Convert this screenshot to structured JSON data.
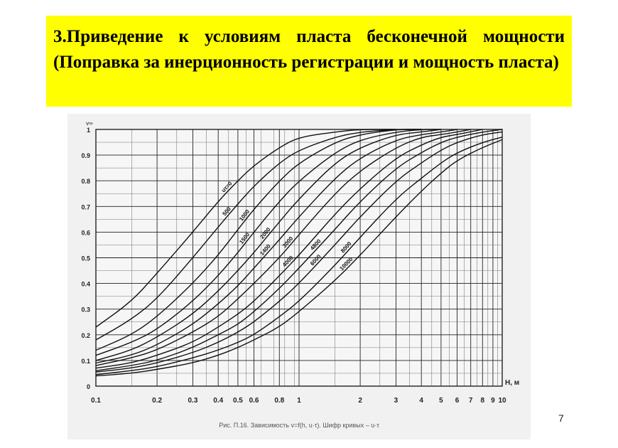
{
  "slide": {
    "title": "3.Приведение к условиям пласта бесконечной мощности (Поправка за инерционность регистрации и мощность пласта)",
    "page_number": "7",
    "title_bg": "#ffff00"
  },
  "chart_data": {
    "type": "line",
    "ylabel": "v∞",
    "xlabel": "H, м",
    "caption": "Рис. П.16. Зависимость v=f(h, u·τ). Шифр кривых – u·τ",
    "x_scale": "log",
    "xlim": [
      0.1,
      10
    ],
    "ylim": [
      0,
      1
    ],
    "grid": true,
    "x_ticks": [
      0.1,
      0.2,
      0.3,
      0.4,
      0.5,
      0.6,
      0.8,
      1,
      2,
      3,
      4,
      5,
      6,
      7,
      8,
      9,
      10
    ],
    "x_tick_labels": [
      "0.1",
      "0.2",
      "0.3",
      "0.4",
      "0.5",
      "0.6",
      "0.8",
      "1",
      "2",
      "3",
      "4",
      "5",
      "6",
      "7",
      "8",
      "9",
      "10"
    ],
    "y_ticks": [
      0,
      0.1,
      0.2,
      0.3,
      0.4,
      0.5,
      0.6,
      0.7,
      0.8,
      0.9,
      1
    ],
    "y_tick_labels": [
      "0",
      "0.1",
      "0.2",
      "0.3",
      "0.4",
      "0.5",
      "0.6",
      "0.7",
      "0.8",
      "0.9",
      "1"
    ],
    "series": [
      {
        "name": "uτ=0",
        "x": [
          0.1,
          0.15,
          0.2,
          0.3,
          0.4,
          0.5,
          0.6,
          0.8,
          1,
          1.5,
          2,
          3
        ],
        "y": [
          0.23,
          0.33,
          0.44,
          0.6,
          0.72,
          0.8,
          0.86,
          0.93,
          0.97,
          0.99,
          1,
          1
        ]
      },
      {
        "name": "500",
        "x": [
          0.1,
          0.15,
          0.2,
          0.3,
          0.4,
          0.5,
          0.6,
          0.8,
          1,
          1.5,
          2,
          3,
          4
        ],
        "y": [
          0.18,
          0.26,
          0.34,
          0.5,
          0.62,
          0.71,
          0.78,
          0.87,
          0.92,
          0.97,
          0.99,
          1,
          1
        ]
      },
      {
        "name": "1000",
        "x": [
          0.1,
          0.15,
          0.2,
          0.3,
          0.4,
          0.5,
          0.6,
          0.8,
          1,
          1.5,
          2,
          3,
          4
        ],
        "y": [
          0.14,
          0.2,
          0.27,
          0.4,
          0.51,
          0.61,
          0.69,
          0.8,
          0.87,
          0.95,
          0.98,
          1,
          1
        ]
      },
      {
        "name": "1500",
        "x": [
          0.1,
          0.15,
          0.2,
          0.3,
          0.4,
          0.5,
          0.6,
          0.8,
          1,
          1.5,
          2,
          3,
          4,
          5
        ],
        "y": [
          0.12,
          0.17,
          0.22,
          0.33,
          0.43,
          0.52,
          0.6,
          0.72,
          0.8,
          0.91,
          0.96,
          0.99,
          1,
          1
        ]
      },
      {
        "name": "2000",
        "x": [
          0.1,
          0.15,
          0.2,
          0.3,
          0.4,
          0.5,
          0.6,
          0.8,
          1,
          1.5,
          2,
          3,
          4,
          5
        ],
        "y": [
          0.1,
          0.14,
          0.19,
          0.28,
          0.37,
          0.45,
          0.52,
          0.64,
          0.73,
          0.87,
          0.93,
          0.98,
          0.99,
          1
        ]
      },
      {
        "name": "1400",
        "x": [
          0.1,
          0.15,
          0.2,
          0.3,
          0.4,
          0.5,
          0.6,
          0.8,
          1,
          1.5,
          2,
          3,
          4,
          5,
          6
        ],
        "y": [
          0.09,
          0.12,
          0.16,
          0.24,
          0.32,
          0.39,
          0.46,
          0.57,
          0.66,
          0.81,
          0.89,
          0.96,
          0.98,
          0.99,
          1
        ]
      },
      {
        "name": "3000",
        "x": [
          0.1,
          0.15,
          0.2,
          0.3,
          0.4,
          0.5,
          0.6,
          0.8,
          1,
          1.5,
          2,
          3,
          4,
          5,
          6,
          7
        ],
        "y": [
          0.08,
          0.11,
          0.14,
          0.21,
          0.27,
          0.34,
          0.4,
          0.5,
          0.59,
          0.75,
          0.84,
          0.93,
          0.97,
          0.98,
          0.99,
          1
        ]
      },
      {
        "name": "4000",
        "x": [
          0.1,
          0.15,
          0.2,
          0.3,
          0.4,
          0.5,
          0.6,
          0.8,
          1,
          1.5,
          2,
          3,
          4,
          5,
          6,
          8
        ],
        "y": [
          0.07,
          0.09,
          0.12,
          0.17,
          0.23,
          0.28,
          0.33,
          0.43,
          0.51,
          0.67,
          0.77,
          0.89,
          0.94,
          0.97,
          0.98,
          1
        ]
      },
      {
        "name": "4800",
        "x": [
          0.1,
          0.15,
          0.2,
          0.3,
          0.4,
          0.5,
          0.6,
          0.8,
          1,
          1.5,
          2,
          3,
          4,
          5,
          6,
          8,
          10
        ],
        "y": [
          0.06,
          0.08,
          0.1,
          0.15,
          0.2,
          0.24,
          0.29,
          0.38,
          0.46,
          0.61,
          0.72,
          0.85,
          0.91,
          0.95,
          0.97,
          0.99,
          1
        ]
      },
      {
        "name": "6000",
        "x": [
          0.1,
          0.15,
          0.2,
          0.3,
          0.4,
          0.5,
          0.6,
          0.8,
          1,
          1.5,
          2,
          3,
          4,
          5,
          6,
          8,
          10
        ],
        "y": [
          0.055,
          0.07,
          0.09,
          0.13,
          0.17,
          0.21,
          0.25,
          0.33,
          0.4,
          0.55,
          0.66,
          0.8,
          0.87,
          0.92,
          0.95,
          0.98,
          0.99
        ]
      },
      {
        "name": "8000",
        "x": [
          0.1,
          0.15,
          0.2,
          0.3,
          0.4,
          0.5,
          0.6,
          0.8,
          1,
          1.5,
          2,
          3,
          4,
          5,
          6,
          8,
          10
        ],
        "y": [
          0.045,
          0.06,
          0.075,
          0.11,
          0.14,
          0.17,
          0.2,
          0.27,
          0.33,
          0.47,
          0.58,
          0.73,
          0.81,
          0.87,
          0.91,
          0.95,
          0.97
        ]
      },
      {
        "name": "10000",
        "x": [
          0.1,
          0.15,
          0.2,
          0.3,
          0.4,
          0.5,
          0.6,
          0.8,
          1,
          1.5,
          2,
          3,
          4,
          5,
          6,
          8,
          10
        ],
        "y": [
          0.04,
          0.05,
          0.065,
          0.09,
          0.12,
          0.15,
          0.18,
          0.23,
          0.29,
          0.41,
          0.51,
          0.66,
          0.76,
          0.83,
          0.88,
          0.93,
          0.96
        ]
      }
    ]
  }
}
